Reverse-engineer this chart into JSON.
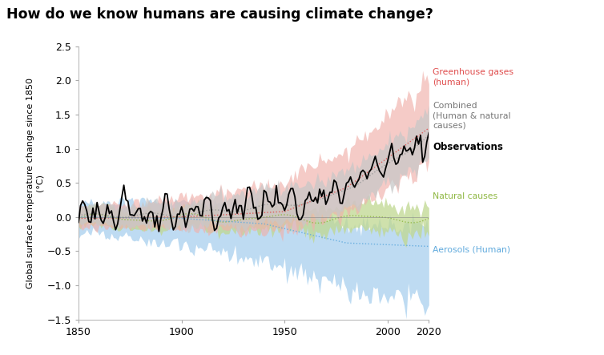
{
  "title": "How do we know humans are causing climate change?",
  "ylabel": "Global surface temperature change since 1850\n(°C)",
  "xlim": [
    1850,
    2020
  ],
  "ylim": [
    -1.5,
    2.5
  ],
  "yticks": [
    -1.5,
    -1.0,
    -0.5,
    0.0,
    0.5,
    1.0,
    1.5,
    2.0,
    2.5
  ],
  "xticks": [
    1850,
    1900,
    1950,
    2000,
    2020
  ],
  "colors": {
    "ghg": "#e05050",
    "ghg_fill": "#f0b0aa",
    "natural": "#90b844",
    "natural_fill": "#c0d890",
    "aerosol": "#60aadd",
    "aerosol_fill": "#a8d0ee",
    "combined": "#999999",
    "combined_fill": "#c8c8c8",
    "observations": "#000000",
    "zeroline": "#888888"
  }
}
